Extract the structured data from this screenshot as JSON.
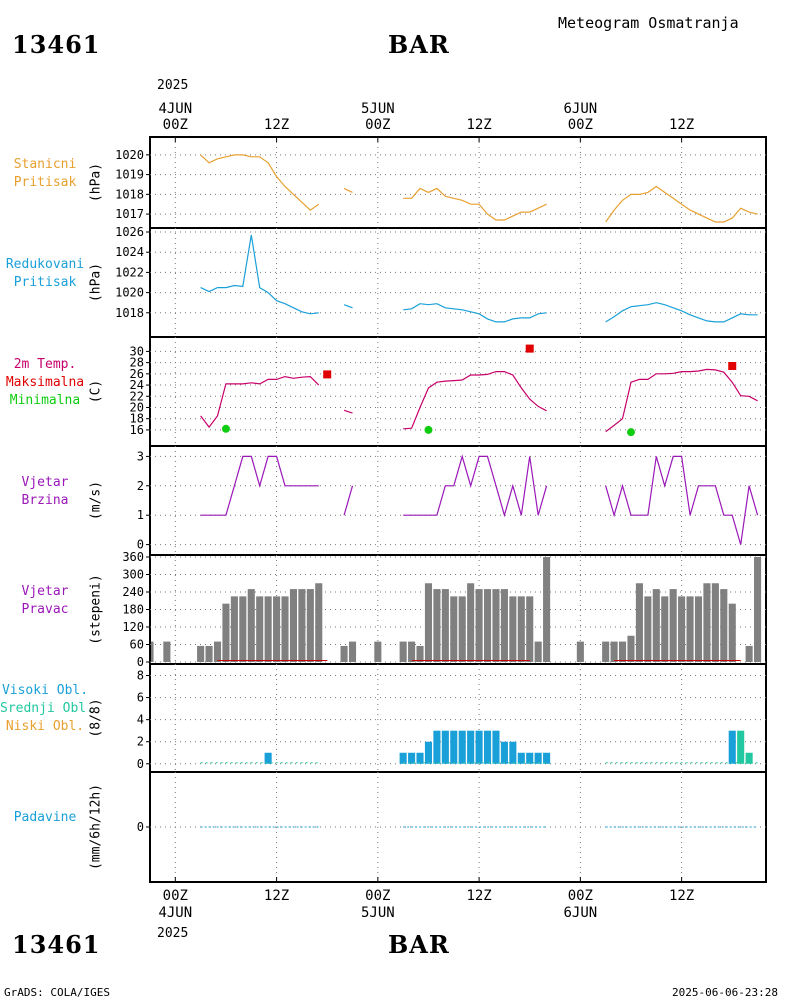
{
  "header": {
    "station_id": "13461",
    "station_name": "BAR",
    "product_title": "Meteogram Osmatranja",
    "year": "2025"
  },
  "footer": {
    "station_id": "13461",
    "station_name": "BAR",
    "year": "2025",
    "credit": "GrADS: COLA/IGES",
    "timestamp": "2025-06-06-23:28"
  },
  "time_axis": {
    "top_labels": [
      {
        "hour": 0,
        "lines": [
          "4JUN",
          "00Z"
        ]
      },
      {
        "hour": 12,
        "lines": [
          "12Z"
        ]
      },
      {
        "hour": 24,
        "lines": [
          "5JUN",
          "00Z"
        ]
      },
      {
        "hour": 36,
        "lines": [
          "12Z"
        ]
      },
      {
        "hour": 48,
        "lines": [
          "6JUN",
          "00Z"
        ]
      },
      {
        "hour": 60,
        "lines": [
          "12Z"
        ]
      }
    ],
    "bottom_labels": [
      {
        "hour": 0,
        "lines": [
          "00Z",
          "4JUN"
        ]
      },
      {
        "hour": 12,
        "lines": [
          "12Z"
        ]
      },
      {
        "hour": 24,
        "lines": [
          "00Z",
          "5JUN"
        ]
      },
      {
        "hour": 36,
        "lines": [
          "12Z"
        ]
      },
      {
        "hour": 48,
        "lines": [
          "00Z",
          "6JUN"
        ]
      },
      {
        "hour": 60,
        "lines": [
          "12Z"
        ]
      }
    ],
    "range_hours": [
      -3,
      70
    ]
  },
  "chart_data": [
    {
      "type": "line",
      "id": "station_pressure",
      "labels": [
        {
          "text": "Stanicni",
          "color": "#e8a030"
        },
        {
          "text": "Pritisak",
          "color": "#e8a030"
        }
      ],
      "ylabel": "(hPa)",
      "color": "#e8a030",
      "ylim": [
        1016.6,
        1020.6
      ],
      "yticks": [
        1017,
        1018,
        1019,
        1020
      ],
      "series": [
        {
          "x": [
            3,
            4,
            5,
            6,
            7,
            8,
            9,
            10,
            11,
            12,
            13,
            14,
            15,
            16,
            17
          ],
          "y": [
            1020.0,
            1019.6,
            1019.8,
            1019.9,
            1020.0,
            1020.0,
            1019.9,
            1019.9,
            1019.6,
            1018.9,
            1018.4,
            1018.0,
            1017.6,
            1017.2,
            1017.5
          ]
        },
        {
          "x": [
            20,
            21
          ],
          "y": [
            1018.3,
            1018.1
          ]
        },
        {
          "x": [
            27,
            28,
            29,
            30,
            31,
            32,
            33,
            34,
            35,
            36,
            37,
            38,
            39,
            40,
            41,
            42,
            43,
            44
          ],
          "y": [
            1017.8,
            1017.8,
            1018.3,
            1018.1,
            1018.3,
            1017.9,
            1017.8,
            1017.7,
            1017.5,
            1017.5,
            1017.0,
            1016.7,
            1016.7,
            1016.9,
            1017.1,
            1017.1,
            1017.3,
            1017.5
          ]
        },
        {
          "x": [
            51,
            52,
            53,
            54,
            55,
            56,
            57,
            58,
            59,
            60,
            61,
            62,
            63,
            64,
            65,
            66,
            67,
            68,
            69
          ],
          "y": [
            1016.6,
            1017.2,
            1017.7,
            1018.0,
            1018.0,
            1018.1,
            1018.4,
            1018.1,
            1017.8,
            1017.5,
            1017.2,
            1017.0,
            1016.8,
            1016.6,
            1016.6,
            1016.8,
            1017.3,
            1017.1,
            1017.0
          ]
        }
      ]
    },
    {
      "type": "line",
      "id": "reduced_pressure",
      "labels": [
        {
          "text": "Redukovani",
          "color": "#1aa0d8"
        },
        {
          "text": "Pritisak",
          "color": "#1aa0d8"
        }
      ],
      "ylabel": "(hPa)",
      "color": "#1aa0d8",
      "ylim": [
        1016,
        1026
      ],
      "yticks": [
        1018,
        1020,
        1022,
        1024,
        1026
      ],
      "series": [
        {
          "x": [
            3,
            4,
            5,
            6,
            7,
            8,
            9,
            10,
            11,
            12,
            13,
            14,
            15,
            16,
            17
          ],
          "y": [
            1020.5,
            1020.1,
            1020.5,
            1020.5,
            1020.7,
            1020.6,
            1025.7,
            1020.5,
            1020.0,
            1019.2,
            1018.9,
            1018.5,
            1018.1,
            1017.9,
            1018.0
          ]
        },
        {
          "x": [
            20,
            21
          ],
          "y": [
            1018.8,
            1018.5
          ]
        },
        {
          "x": [
            27,
            28,
            29,
            30,
            31,
            32,
            33,
            34,
            35,
            36,
            37,
            38,
            39,
            40,
            41,
            42,
            43,
            44
          ],
          "y": [
            1018.3,
            1018.4,
            1018.9,
            1018.8,
            1018.9,
            1018.5,
            1018.4,
            1018.3,
            1018.1,
            1017.9,
            1017.4,
            1017.1,
            1017.1,
            1017.4,
            1017.5,
            1017.5,
            1017.9,
            1018.0
          ]
        },
        {
          "x": [
            51,
            52,
            53,
            54,
            55,
            56,
            57,
            58,
            59,
            60,
            61,
            62,
            63,
            64,
            65,
            66,
            67,
            68,
            69
          ],
          "y": [
            1017.1,
            1017.6,
            1018.2,
            1018.6,
            1018.7,
            1018.8,
            1019.0,
            1018.8,
            1018.5,
            1018.2,
            1017.8,
            1017.5,
            1017.2,
            1017.1,
            1017.1,
            1017.5,
            1017.9,
            1017.8,
            1017.8
          ]
        }
      ]
    },
    {
      "type": "line",
      "id": "temperature",
      "labels": [
        {
          "text": "2m Temp.",
          "color": "#c8006a"
        },
        {
          "text": "Maksimalna",
          "color": "#e00000"
        },
        {
          "text": "Minimalna",
          "color": "#10cc10"
        }
      ],
      "ylabel": "(C)",
      "color": "#c8006a",
      "ylim": [
        14.2,
        31.5
      ],
      "yticks": [
        16,
        18,
        20,
        22,
        24,
        26,
        28,
        30
      ],
      "series": [
        {
          "x": [
            3,
            4,
            5,
            6,
            7,
            8,
            9,
            10,
            11,
            12,
            13,
            14,
            15,
            16,
            17
          ],
          "y": [
            18.5,
            16.5,
            18.5,
            24.2,
            24.2,
            24.2,
            24.4,
            24.2,
            25.0,
            25.0,
            25.5,
            25.2,
            25.4,
            25.5,
            24.0
          ]
        },
        {
          "x": [
            20,
            21
          ],
          "y": [
            19.5,
            19.0
          ]
        },
        {
          "x": [
            27,
            28,
            29,
            30,
            31,
            32,
            33,
            34,
            35,
            36,
            37,
            38,
            39,
            40,
            41,
            42,
            43,
            44
          ],
          "y": [
            16.2,
            16.3,
            20.0,
            23.5,
            24.5,
            24.7,
            24.8,
            24.9,
            25.8,
            25.8,
            25.9,
            26.4,
            26.4,
            25.8,
            23.5,
            21.5,
            20.2,
            19.4
          ]
        },
        {
          "x": [
            51,
            52,
            53,
            54,
            55,
            56,
            57,
            58,
            59,
            60,
            61,
            62,
            63,
            64,
            65,
            66,
            67,
            68,
            69
          ],
          "y": [
            15.7,
            16.8,
            18.0,
            24.5,
            25.0,
            25.0,
            26.0,
            26.0,
            26.1,
            26.4,
            26.4,
            26.5,
            26.8,
            26.7,
            26.3,
            24.5,
            22.1,
            22.0,
            21.2
          ]
        }
      ],
      "max_points": {
        "color": "#e00000",
        "x": [
          18,
          42,
          66
        ],
        "y": [
          25.9,
          30.5,
          27.4
        ]
      },
      "min_points": {
        "color": "#10cc10",
        "x": [
          6,
          30,
          54
        ],
        "y": [
          16.2,
          16.0,
          15.6
        ]
      }
    },
    {
      "type": "line",
      "id": "wind_speed",
      "labels": [
        {
          "text": "Vjetar",
          "color": "#9a18b8"
        },
        {
          "text": "Brzina",
          "color": "#9a18b8"
        }
      ],
      "ylabel": "(m/s)",
      "color": "#9a18b8",
      "ylim": [
        -0.15,
        3.15
      ],
      "yticks": [
        0,
        1,
        2,
        3
      ],
      "series": [
        {
          "x": [
            3,
            4,
            5,
            6,
            7,
            8,
            9,
            10,
            11,
            12,
            13,
            14,
            15,
            16,
            17
          ],
          "y": [
            1,
            1,
            1,
            1,
            2,
            3,
            3,
            2,
            3,
            3,
            2,
            2,
            2,
            2,
            2
          ]
        },
        {
          "x": [
            20,
            21
          ],
          "y": [
            1,
            2
          ]
        },
        {
          "x": [
            27,
            28,
            29,
            30,
            31,
            32,
            33,
            34,
            35,
            36,
            37,
            38,
            39,
            40,
            41,
            42,
            43,
            44
          ],
          "y": [
            1,
            1,
            1,
            1,
            1,
            2,
            2,
            3,
            2,
            3,
            3,
            2,
            1,
            2,
            1,
            3,
            1,
            2
          ]
        },
        {
          "x": [
            51,
            52,
            53,
            54,
            55,
            56,
            57,
            58,
            59,
            60,
            61,
            62,
            63,
            64,
            65,
            66,
            67,
            68,
            69
          ],
          "y": [
            2,
            1,
            2,
            1,
            1,
            1,
            3,
            2,
            3,
            3,
            1,
            2,
            2,
            2,
            1,
            1,
            0,
            2,
            1
          ]
        }
      ]
    },
    {
      "type": "bar",
      "id": "wind_direction",
      "labels": [
        {
          "text": "Vjetar",
          "color": "#9a18b8"
        },
        {
          "text": "Pravac",
          "color": "#9a18b8"
        }
      ],
      "ylabel": "(stepeni)",
      "color": "#808080",
      "ylim": [
        0,
        360
      ],
      "yticks": [
        0,
        60,
        120,
        180,
        240,
        300,
        360
      ],
      "x": [
        -3,
        -1,
        3,
        4,
        5,
        6,
        7,
        8,
        9,
        10,
        11,
        12,
        13,
        14,
        15,
        16,
        17,
        20,
        21,
        24,
        27,
        28,
        29,
        30,
        31,
        32,
        33,
        34,
        35,
        36,
        37,
        38,
        39,
        40,
        41,
        42,
        43,
        44,
        48,
        51,
        52,
        53,
        54,
        55,
        56,
        57,
        58,
        59,
        60,
        61,
        62,
        63,
        64,
        65,
        66,
        67,
        68,
        69
      ],
      "values": [
        70,
        70,
        55,
        55,
        70,
        200,
        225,
        225,
        250,
        225,
        225,
        225,
        225,
        250,
        250,
        250,
        270,
        55,
        70,
        70,
        70,
        70,
        55,
        270,
        250,
        250,
        225,
        225,
        270,
        250,
        250,
        250,
        250,
        225,
        225,
        225,
        70,
        360,
        70,
        70,
        70,
        70,
        90,
        270,
        225,
        250,
        225,
        250,
        225,
        225,
        225,
        270,
        270,
        250,
        200,
        0,
        55,
        360
      ]
    },
    {
      "type": "bar",
      "id": "cloud_cover",
      "labels": [
        {
          "text": "Visoki Obl.",
          "color": "#1aa0d8"
        },
        {
          "text": "Srednji Obl.",
          "color": "#22c8a0"
        },
        {
          "text": "Niski Obl.",
          "color": "#e8a030"
        }
      ],
      "ylabel": "(8/8)",
      "ylim": [
        -0.2,
        8.5
      ],
      "yticks": [
        0,
        2,
        4,
        6,
        8
      ],
      "series": [
        {
          "name": "Visoki Obl.",
          "color": "#1aa0d8",
          "x": [
            11,
            27,
            28,
            29,
            30,
            31,
            32,
            33,
            34,
            35,
            36,
            37,
            38,
            39,
            40,
            41,
            42,
            43,
            44,
            66
          ],
          "values": [
            1,
            1,
            1,
            1,
            2,
            3,
            3,
            3,
            3,
            3,
            3,
            3,
            3,
            2,
            2,
            1,
            1,
            1,
            1,
            3
          ]
        },
        {
          "name": "Srednji Obl.",
          "color": "#22c8a0",
          "x": [
            67,
            68
          ],
          "values": [
            3,
            1
          ]
        }
      ]
    },
    {
      "type": "line",
      "id": "precipitation",
      "labels": [
        {
          "text": "Padavine",
          "color": "#1aa0d8"
        }
      ],
      "ylabel": "(mm/6h/12h)",
      "color": "#1aa0d8",
      "ylim": [
        -1,
        1
      ],
      "yticks": [
        0
      ],
      "series": [
        {
          "x": [
            3,
            17
          ],
          "y": [
            0,
            0
          ]
        },
        {
          "x": [
            27,
            44
          ],
          "y": [
            0,
            0
          ]
        },
        {
          "x": [
            51,
            69
          ],
          "y": [
            0,
            0
          ]
        }
      ]
    }
  ]
}
